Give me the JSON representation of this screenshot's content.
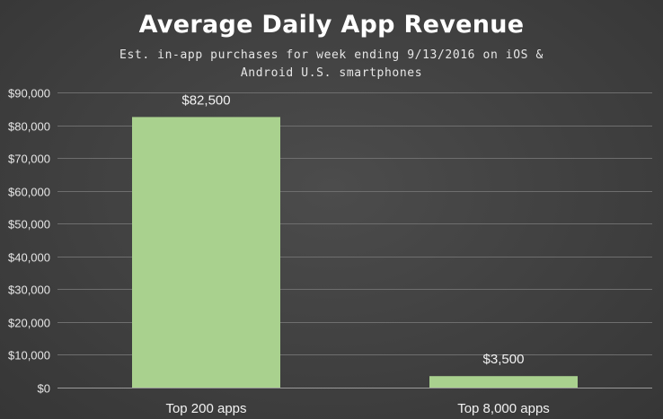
{
  "chart_data": {
    "type": "bar",
    "title": "Average Daily App Revenue",
    "subtitle": "Est. in-app purchases for week ending 9/13/2016 on iOS & Android U.S. smartphones",
    "categories": [
      "Top 200 apps",
      "Top 8,000 apps"
    ],
    "values": [
      82500,
      3500
    ],
    "data_labels": [
      "$82,500",
      "$3,500"
    ],
    "xlabel": "",
    "ylabel": "",
    "ylim": [
      0,
      90000
    ],
    "yticks": [
      0,
      10000,
      20000,
      30000,
      40000,
      50000,
      60000,
      70000,
      80000,
      90000
    ],
    "ytick_labels": [
      "$0",
      "$10,000",
      "$20,000",
      "$30,000",
      "$40,000",
      "$50,000",
      "$60,000",
      "$70,000",
      "$80,000",
      "$90,000"
    ],
    "grid": true,
    "legend": "none"
  },
  "colors": {
    "bar": "#a9d18e",
    "gridline": "#6e6e6e",
    "axis": "#9a9a9a"
  }
}
